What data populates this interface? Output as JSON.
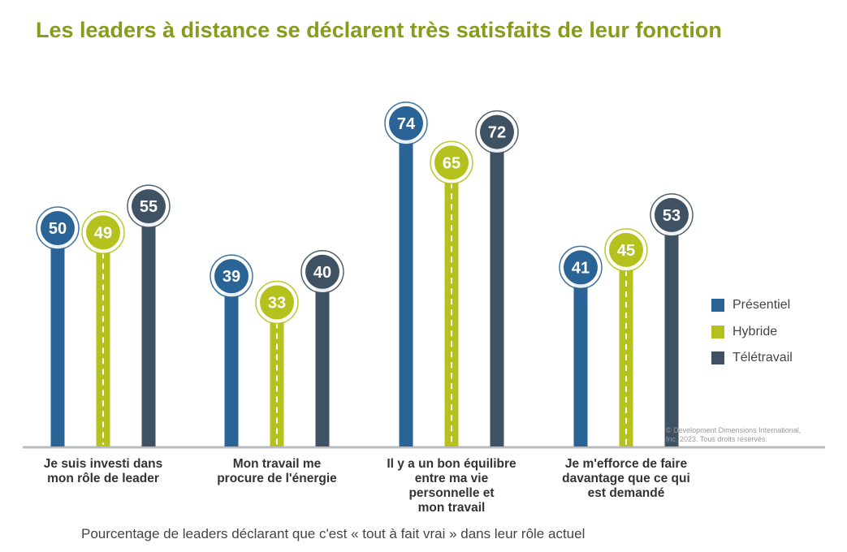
{
  "title": "Les leaders à distance se déclarent très satisfaits de leur fonction",
  "subtitle": "Pourcentage de leaders déclarant que c'est « tout à fait vrai » dans leur rôle actuel",
  "copyright": {
    "line1": "© Development Dimensions International,",
    "line2": "Inc. 2023. Tous droits réservés."
  },
  "legend": [
    {
      "label": "Présentiel",
      "color": "#2a6496"
    },
    {
      "label": "Hybride",
      "color": "#b5c21e"
    },
    {
      "label": "Télétravail",
      "color": "#3f5264"
    }
  ],
  "chart_data": {
    "type": "bar",
    "style": "lollipop",
    "categories": [
      "Je suis investi dans\nmon rôle de leader",
      "Mon travail me\nprocure de l'énergie",
      "Il y a un bon équilibre\nentre ma vie\npersonnelle et\nmon travail",
      "Je m'efforce de faire\ndavantage que ce qui\nest demandé"
    ],
    "series": [
      {
        "name": "Présentiel",
        "values": [
          50,
          39,
          74,
          41
        ],
        "color": "#2a6496"
      },
      {
        "name": "Hybride",
        "values": [
          49,
          33,
          65,
          45
        ],
        "color": "#b5c21e"
      },
      {
        "name": "Télétravail",
        "values": [
          55,
          40,
          72,
          53
        ],
        "color": "#3f5264"
      }
    ],
    "ylim": [
      0,
      100
    ],
    "legend_position": "right",
    "grid": false
  }
}
